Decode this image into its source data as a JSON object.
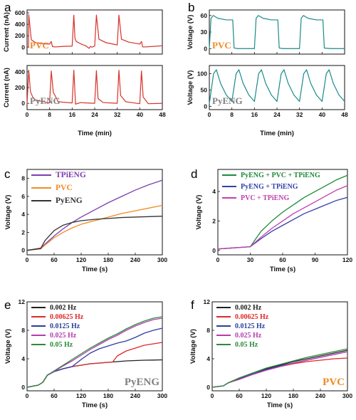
{
  "chart_data": [
    {
      "panel": "a",
      "type": "line",
      "xlabel": "Time (min)",
      "xlim": [
        0,
        48
      ],
      "xticks": [
        "0",
        "8",
        "16",
        "24",
        "32",
        "40",
        "48"
      ],
      "color": "#d7322b",
      "subplots": [
        {
          "ylabel": "Current (nA)",
          "ylim": [
            -120,
            650
          ],
          "yticks": [
            "0",
            "200",
            "400",
            "600"
          ],
          "annotation": "PVC",
          "annotation_color": "#f08a24",
          "x": [
            0,
            0.5,
            0.6,
            1.5,
            3,
            6,
            8,
            8.6,
            9,
            10,
            13,
            16,
            16.6,
            17,
            17.5,
            19,
            21,
            22,
            22.5,
            23,
            24,
            24.6,
            25.5,
            28,
            32,
            32.6,
            33.5,
            36,
            40,
            40.6,
            41,
            42,
            45,
            48
          ],
          "y": [
            0,
            0,
            570,
            130,
            80,
            60,
            55,
            100,
            10,
            5,
            15,
            20,
            560,
            150,
            100,
            60,
            20,
            -20,
            15,
            0,
            20,
            560,
            140,
            80,
            40,
            560,
            140,
            90,
            55,
            100,
            5,
            5,
            15,
            25
          ]
        },
        {
          "ylabel": "Current (nA)",
          "ylim": [
            -80,
            480
          ],
          "yticks": [
            "0",
            "200",
            "400"
          ],
          "annotation": "PyENG",
          "annotation_color": "#808080",
          "x": [
            0,
            0.6,
            1.2,
            2,
            3,
            8,
            8.6,
            9.3,
            10.5,
            11,
            16,
            16.6,
            17.2,
            19,
            21,
            24,
            24.6,
            25.2,
            27,
            32,
            32.6,
            33.2,
            35,
            40,
            40.6,
            41.2,
            43,
            48
          ],
          "y": [
            -5,
            420,
            150,
            80,
            40,
            5,
            410,
            140,
            60,
            20,
            5,
            420,
            -10,
            10,
            5,
            0,
            415,
            60,
            10,
            0,
            420,
            100,
            20,
            -5,
            410,
            80,
            -5,
            0
          ]
        }
      ]
    },
    {
      "panel": "b",
      "type": "line",
      "xlabel": "Time (min)",
      "xlim": [
        0,
        48
      ],
      "xticks": [
        "0",
        "8",
        "16",
        "24",
        "32",
        "40",
        "48"
      ],
      "color": "#1b8a8a",
      "subplots": [
        {
          "ylabel": "Voltage (V)",
          "ylim": [
            -10,
            70
          ],
          "yticks": [
            "0",
            "30",
            "60"
          ],
          "annotation": "PVC",
          "annotation_color": "#f08a24",
          "x": [
            0,
            0.6,
            1.4,
            3,
            6,
            8.3,
            8.8,
            10,
            16,
            16.6,
            17.4,
            19,
            22,
            24.3,
            24.8,
            26,
            32,
            32.6,
            33.4,
            35,
            38,
            40.3,
            40.8,
            43,
            48
          ],
          "y": [
            0,
            55,
            60,
            55,
            52,
            52,
            1,
            0,
            0,
            55,
            60,
            55,
            52,
            52,
            1,
            0,
            0,
            55,
            60,
            55,
            52,
            52,
            1,
            0,
            0
          ]
        },
        {
          "ylabel": "Voltage (V)",
          "ylim": [
            -10,
            125
          ],
          "yticks": [
            "0",
            "50",
            "100"
          ],
          "annotation": "PyENG",
          "annotation_color": "#808080",
          "x": [
            0,
            1.5,
            2.5,
            4,
            6,
            8,
            9.5,
            10.5,
            12,
            14,
            16,
            17.5,
            18.5,
            20,
            22,
            24,
            25.5,
            26.5,
            28,
            30,
            32,
            33.5,
            34.5,
            36,
            38,
            40,
            41.5,
            42.5,
            44,
            46,
            48
          ],
          "y": [
            8,
            100,
            112,
            70,
            35,
            15,
            100,
            112,
            70,
            35,
            15,
            100,
            112,
            70,
            35,
            15,
            100,
            112,
            70,
            35,
            15,
            100,
            112,
            70,
            35,
            15,
            100,
            112,
            70,
            35,
            15
          ]
        }
      ]
    },
    {
      "panel": "c",
      "type": "line",
      "xlabel": "Time (s)",
      "ylabel": "Voltage (V)",
      "xlim": [
        0,
        300
      ],
      "ylim": [
        -0.5,
        9
      ],
      "xticks": [
        "0",
        "60",
        "120",
        "180",
        "240",
        "300"
      ],
      "yticks": [
        "0",
        "2",
        "4",
        "6",
        "8"
      ],
      "legend": "top-left",
      "x": [
        0,
        30,
        40,
        60,
        80,
        100,
        120,
        150,
        180,
        210,
        240,
        270,
        300
      ],
      "series": [
        {
          "name": "TPiENG",
          "color": "#7b3fae",
          "values": [
            0,
            0.25,
            0.7,
            1.6,
            2.4,
            3.1,
            3.7,
            4.5,
            5.3,
            6.0,
            6.7,
            7.3,
            7.8
          ]
        },
        {
          "name": "PVC",
          "color": "#f08a24",
          "values": [
            0,
            0.15,
            0.6,
            1.4,
            2.0,
            2.5,
            2.9,
            3.3,
            3.7,
            4.1,
            4.4,
            4.7,
            5.0
          ]
        },
        {
          "name": "PyENG",
          "color": "#333333",
          "values": [
            0,
            0.2,
            1.1,
            2.2,
            2.8,
            3.1,
            3.3,
            3.45,
            3.55,
            3.65,
            3.7,
            3.75,
            3.8
          ]
        }
      ]
    },
    {
      "panel": "d",
      "type": "line",
      "xlabel": "Time (s)",
      "ylabel": "Voltage (V)",
      "xlim": [
        0,
        120
      ],
      "ylim": [
        -0.3,
        5.5
      ],
      "xticks": [
        "0",
        "30",
        "60",
        "90",
        "120"
      ],
      "yticks": [
        "0",
        "2",
        "4"
      ],
      "legend": "top-left",
      "x": [
        0,
        10,
        20,
        30,
        40,
        50,
        60,
        70,
        80,
        90,
        100,
        110,
        120
      ],
      "series": [
        {
          "name": "PyENG + PVC + TPiENG",
          "color": "#1f8a3c",
          "values": [
            0.1,
            0.15,
            0.2,
            0.25,
            1.3,
            2.0,
            2.6,
            3.1,
            3.6,
            4.0,
            4.4,
            4.8,
            5.1
          ]
        },
        {
          "name": "PyENG + TPiENG",
          "color": "#3341a8",
          "values": [
            0.1,
            0.15,
            0.2,
            0.25,
            0.8,
            1.3,
            1.7,
            2.1,
            2.5,
            2.8,
            3.1,
            3.4,
            3.6
          ]
        },
        {
          "name": "PVC + TPiENG",
          "color": "#c03fb0",
          "values": [
            0.1,
            0.15,
            0.2,
            0.25,
            0.9,
            1.5,
            2.0,
            2.5,
            2.9,
            3.3,
            3.7,
            4.1,
            4.4
          ]
        }
      ]
    },
    {
      "panel": "e",
      "type": "line",
      "xlabel": "Time (s)",
      "ylabel": "Voltage (V)",
      "xlim": [
        0,
        300
      ],
      "ylim": [
        -0.5,
        12
      ],
      "xticks": [
        "0",
        "60",
        "120",
        "180",
        "240",
        "300"
      ],
      "yticks": [
        "0",
        "4",
        "8",
        "12"
      ],
      "legend": "top-left",
      "annotation": "PyENG",
      "annotation_color": "#808080",
      "x": [
        0,
        25,
        35,
        45,
        60,
        80,
        100,
        120,
        140,
        160,
        180,
        190,
        200,
        220,
        240,
        260,
        280,
        300
      ],
      "series": [
        {
          "name": "0.002 Hz",
          "color": "#222222",
          "values": [
            0,
            0.3,
            0.7,
            1.7,
            2.2,
            2.6,
            2.9,
            3.1,
            3.3,
            3.4,
            3.5,
            3.55,
            3.6,
            3.7,
            3.75,
            3.8,
            3.82,
            3.85
          ]
        },
        {
          "name": "0.00625 Hz",
          "color": "#e02828",
          "values": [
            0,
            0.3,
            0.7,
            1.7,
            2.2,
            2.6,
            2.9,
            3.1,
            3.3,
            3.4,
            3.5,
            3.55,
            4.4,
            5.1,
            5.5,
            5.9,
            6.1,
            6.3
          ]
        },
        {
          "name": "0.0125 Hz",
          "color": "#2a3f9e",
          "values": [
            0,
            0.3,
            0.7,
            1.7,
            2.2,
            2.6,
            2.9,
            3.9,
            4.8,
            5.4,
            5.8,
            6.0,
            6.2,
            6.5,
            7.0,
            7.6,
            8.0,
            8.3
          ]
        },
        {
          "name": "0.025 Hz",
          "color": "#b63cb0",
          "values": [
            0,
            0.3,
            0.7,
            1.7,
            2.2,
            3.0,
            3.7,
            4.5,
            5.3,
            6.0,
            6.7,
            7.0,
            7.3,
            8.0,
            8.6,
            9.1,
            9.5,
            9.7
          ]
        },
        {
          "name": "0.05 Hz",
          "color": "#2c8a3c",
          "values": [
            0,
            0.3,
            0.7,
            1.7,
            2.3,
            3.1,
            3.9,
            4.7,
            5.5,
            6.2,
            6.9,
            7.2,
            7.5,
            8.2,
            8.8,
            9.3,
            9.7,
            9.9
          ]
        }
      ]
    },
    {
      "panel": "f",
      "type": "line",
      "xlabel": "Time (s)",
      "ylabel": "Voltage (V)",
      "xlim": [
        0,
        300
      ],
      "ylim": [
        -0.5,
        12
      ],
      "xticks": [
        "0",
        "60",
        "120",
        "180",
        "240",
        "300"
      ],
      "yticks": [
        "0",
        "4",
        "8",
        "12"
      ],
      "legend": "top-left",
      "annotation": "PVC",
      "annotation_color": "#f08a24",
      "x": [
        0,
        25,
        35,
        60,
        90,
        120,
        150,
        180,
        210,
        240,
        270,
        300
      ],
      "series": [
        {
          "name": "0.002 Hz",
          "color": "#222222",
          "values": [
            0,
            0.2,
            0.6,
            1.3,
            2.0,
            2.6,
            3.1,
            3.6,
            4.0,
            4.4,
            4.8,
            5.2
          ]
        },
        {
          "name": "0.00625 Hz",
          "color": "#e02828",
          "values": [
            0,
            0.2,
            0.6,
            1.2,
            1.8,
            2.4,
            2.9,
            3.3,
            3.6,
            3.8,
            4.0,
            4.1
          ]
        },
        {
          "name": "0.0125 Hz",
          "color": "#2a3f9e",
          "values": [
            0,
            0.2,
            0.6,
            1.2,
            1.9,
            2.5,
            3.0,
            3.4,
            3.8,
            4.2,
            4.6,
            5.0
          ]
        },
        {
          "name": "0.025 Hz",
          "color": "#b63cb0",
          "values": [
            0,
            0.2,
            0.6,
            1.1,
            1.8,
            2.4,
            2.9,
            3.4,
            3.8,
            4.2,
            4.6,
            5.0
          ]
        },
        {
          "name": "0.05 Hz",
          "color": "#2c8a3c",
          "values": [
            0,
            0.2,
            0.6,
            1.3,
            2.0,
            2.7,
            3.2,
            3.7,
            4.2,
            4.6,
            5.0,
            5.4
          ]
        }
      ]
    }
  ]
}
